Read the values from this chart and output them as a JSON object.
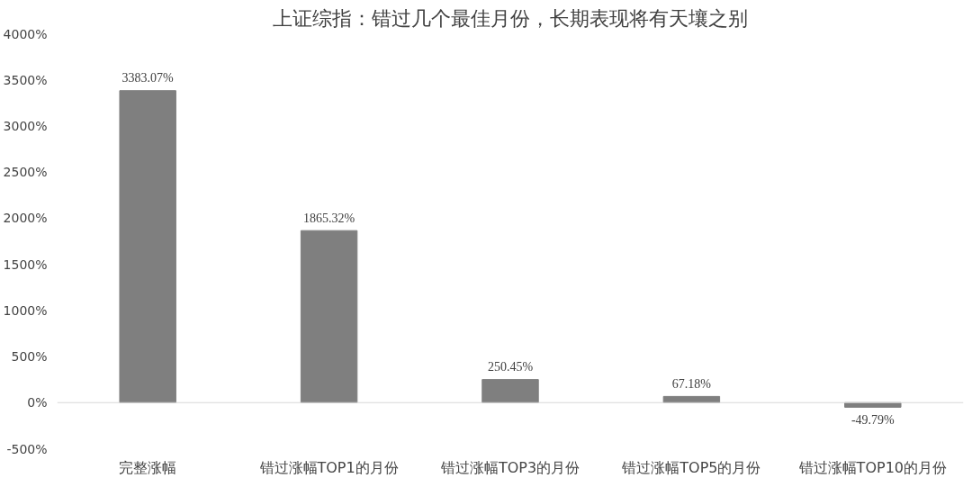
{
  "chart_data": {
    "type": "bar",
    "title": "上证综指：错过几个最佳月份，长期表现将有天壤之别",
    "categories": [
      "完整涨幅",
      "错过涨幅TOP1的月份",
      "错过涨幅TOP3的月份",
      "错过涨幅TOP5的月份",
      "错过涨幅TOP10的月份"
    ],
    "values": [
      3383.07,
      1865.32,
      250.45,
      67.18,
      -49.79
    ],
    "value_labels": [
      "3383.07%",
      "1865.32%",
      "250.45%",
      "67.18%",
      "-49.79%"
    ],
    "color": "#7f7f7f",
    "ylim": [
      -500,
      4000
    ],
    "yticks": [
      {
        "value": -500,
        "label": "-500%"
      },
      {
        "value": 0,
        "label": "0%"
      },
      {
        "value": 500,
        "label": "500%"
      },
      {
        "value": 1000,
        "label": "1000%"
      },
      {
        "value": 1500,
        "label": "1500%"
      },
      {
        "value": 2000,
        "label": "2000%"
      },
      {
        "value": 2500,
        "label": "2500%"
      },
      {
        "value": 3000,
        "label": "3000%"
      },
      {
        "value": 3500,
        "label": "3500%"
      },
      {
        "value": 4000,
        "label": "4000%"
      }
    ],
    "ref_lines": [
      {
        "axis": "y",
        "value": 0,
        "color": "#d9d9d9"
      }
    ],
    "grid": false
  }
}
